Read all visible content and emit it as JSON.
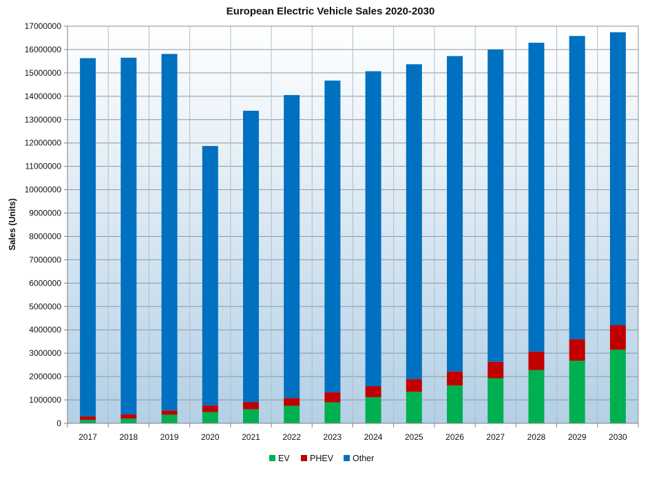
{
  "chart_data": {
    "type": "bar",
    "stacked": true,
    "title": "European Electric Vehicle Sales 2020-2030",
    "xlabel": "",
    "ylabel": "Sales (Units)",
    "ylim": [
      0,
      17000000
    ],
    "ytick_step": 1000000,
    "categories": [
      "2017",
      "2018",
      "2019",
      "2020",
      "2021",
      "2022",
      "2023",
      "2024",
      "2025",
      "2026",
      "2027",
      "2028",
      "2029",
      "2030"
    ],
    "series": [
      {
        "name": "EV",
        "color": "#00b050",
        "values": [
          150000,
          200000,
          370000,
          480000,
          600000,
          750000,
          900000,
          1120000,
          1350000,
          1620000,
          1930000,
          2280000,
          2680000,
          3150000
        ]
      },
      {
        "name": "PHEV",
        "color": "#c00000",
        "values": [
          150000,
          180000,
          180000,
          280000,
          310000,
          330000,
          430000,
          470000,
          540000,
          600000,
          700000,
          790000,
          920000,
          1050000
        ]
      },
      {
        "name": "Other",
        "color": "#0070c0",
        "values": [
          15330000,
          15270000,
          15260000,
          11110000,
          12470000,
          12970000,
          13340000,
          13480000,
          13480000,
          13500000,
          13370000,
          13220000,
          12980000,
          12540000
        ]
      }
    ],
    "legend_position": "bottom-center",
    "grid": true
  }
}
